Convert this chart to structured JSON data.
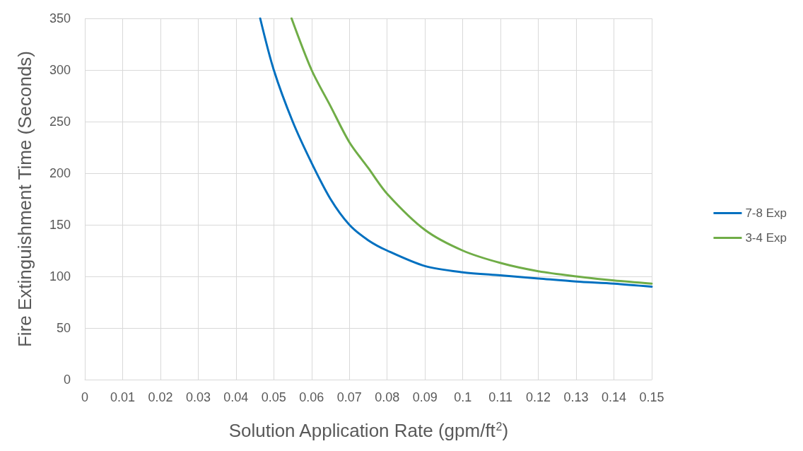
{
  "chart_data": {
    "type": "line",
    "xlabel": "Solution Application Rate (gpm/ft$^{2}$)",
    "ylabel": "Fire Extinguishment Time (Seconds)",
    "series": [
      {
        "name": "7-8 Exp",
        "color": "#0070c0",
        "x": [
          0.0464,
          0.05,
          0.055,
          0.06,
          0.065,
          0.07,
          0.075,
          0.08,
          0.09,
          0.1,
          0.11,
          0.12,
          0.13,
          0.14,
          0.15
        ],
        "values": [
          350,
          300,
          250,
          210,
          175,
          150,
          135,
          125,
          110,
          104,
          101,
          98,
          95,
          93,
          90
        ]
      },
      {
        "name": "3-4 Exp",
        "color": "#70ad47",
        "x": [
          0.0547,
          0.06,
          0.065,
          0.07,
          0.075,
          0.08,
          0.09,
          0.1,
          0.11,
          0.12,
          0.13,
          0.14,
          0.15
        ],
        "values": [
          350,
          300,
          265,
          230,
          205,
          180,
          145,
          125,
          113,
          105,
          100,
          96,
          93
        ]
      }
    ],
    "xlim": [
      0,
      0.15
    ],
    "xticks": [
      0,
      0.01,
      0.02,
      0.03,
      0.04,
      0.05,
      0.06,
      0.07,
      0.08,
      0.09,
      0.1,
      0.11,
      0.12,
      0.13,
      0.14,
      0.15
    ],
    "ylim": [
      0,
      350
    ],
    "yticks": [
      0,
      50,
      100,
      150,
      200,
      250,
      300,
      350
    ],
    "grid": true,
    "legend": "right",
    "marker": "none",
    "line_style": "solid"
  }
}
